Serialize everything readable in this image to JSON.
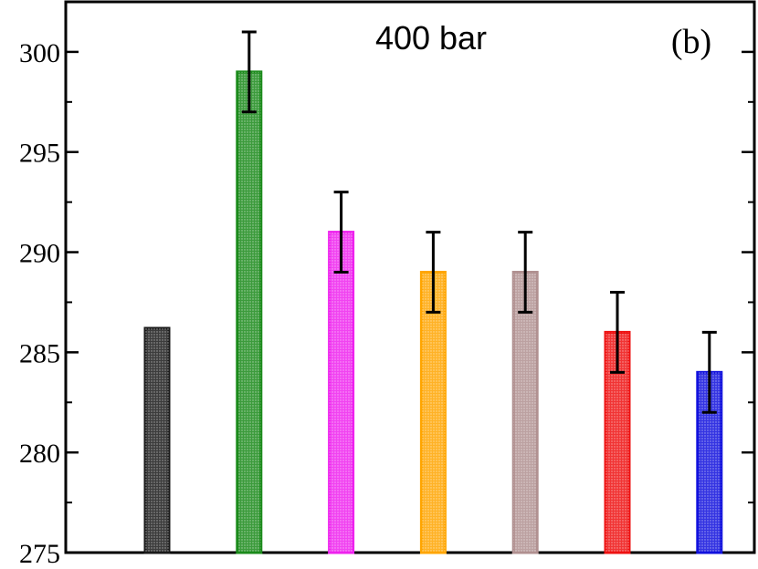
{
  "chart_data": {
    "type": "bar",
    "title": "400 bar",
    "panel_label": "(b)",
    "xlabel": "",
    "ylabel": "",
    "ylim": [
      275,
      302.5
    ],
    "yticks": [
      275,
      280,
      285,
      290,
      295,
      300
    ],
    "grid": false,
    "bars": [
      {
        "value": 286.2,
        "error": null,
        "color": "#1a1a1a"
      },
      {
        "value": 299.0,
        "error": 2.0,
        "color": "#1a8a1a"
      },
      {
        "value": 291.0,
        "error": 2.0,
        "color": "#ee22ee"
      },
      {
        "value": 289.0,
        "error": 2.0,
        "color": "#ffa500"
      },
      {
        "value": 289.0,
        "error": 2.0,
        "color": "#b09090"
      },
      {
        "value": 286.0,
        "error": 2.0,
        "color": "#ee1111"
      },
      {
        "value": 284.0,
        "error": 2.0,
        "color": "#1111dd"
      }
    ]
  }
}
